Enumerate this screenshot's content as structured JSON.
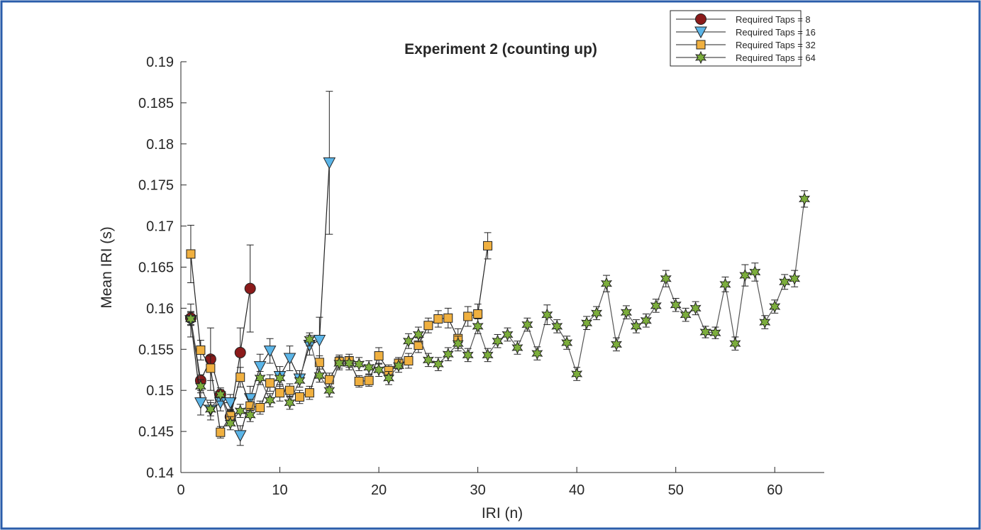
{
  "chart_data": {
    "type": "errorbar-line",
    "title": "Experiment 2 (counting up)",
    "x_label": "IRI (n)",
    "y_label": "Mean IRI (s)",
    "xlim": [
      0,
      65
    ],
    "xticks": [
      0,
      10,
      20,
      30,
      40,
      50,
      60
    ],
    "ylim": [
      0.14,
      0.19
    ],
    "yticks": [
      0.14,
      0.145,
      0.15,
      0.155,
      0.16,
      0.165,
      0.17,
      0.175,
      0.18,
      0.185,
      0.19
    ],
    "legend_position": "upper right",
    "series": [
      {
        "name": "Required Taps = 8",
        "color": "#8b1a1a",
        "marker": "circle",
        "x": [
          1,
          2,
          3,
          4,
          5,
          6,
          7
        ],
        "values": [
          0.1588,
          0.1512,
          0.1538,
          0.1495,
          0.1468,
          0.1546,
          0.1624
        ],
        "errors": [
          0.0008,
          0.0007,
          0.0038,
          0.0006,
          0.0008,
          0.003,
          0.0053
        ]
      },
      {
        "name": "Required Taps = 16",
        "color": "#5bb5e8",
        "marker": "triangle-down",
        "x": [
          1,
          2,
          3,
          4,
          5,
          6,
          7,
          8,
          9,
          10,
          11,
          12,
          13,
          14,
          15
        ],
        "values": [
          0.1585,
          0.1485,
          0.1476,
          0.1485,
          0.1485,
          0.1445,
          0.149,
          0.1529,
          0.1548,
          0.1517,
          0.1539,
          0.1514,
          0.1555,
          0.1561,
          0.1777
        ],
        "errors": [
          0.002,
          0.0015,
          0.0012,
          0.001,
          0.001,
          0.0012,
          0.0015,
          0.0015,
          0.0015,
          0.0012,
          0.0015,
          0.001,
          0.0012,
          0.0028,
          0.0087
        ]
      },
      {
        "name": "Required Taps = 32",
        "color": "#f0b040",
        "marker": "square",
        "x": [
          1,
          2,
          3,
          4,
          5,
          6,
          7,
          8,
          9,
          10,
          11,
          12,
          13,
          14,
          15,
          16,
          17,
          18,
          19,
          20,
          21,
          22,
          23,
          24,
          25,
          26,
          27,
          28,
          29,
          30,
          31
        ],
        "values": [
          0.1666,
          0.1549,
          0.1527,
          0.1449,
          0.1469,
          0.1516,
          0.1481,
          0.1479,
          0.1509,
          0.1497,
          0.15,
          0.1492,
          0.1497,
          0.1534,
          0.1513,
          0.1535,
          0.1536,
          0.1511,
          0.1512,
          0.1542,
          0.1524,
          0.1533,
          0.1536,
          0.1555,
          0.1579,
          0.1587,
          0.1588,
          0.1563,
          0.159,
          0.1593,
          0.1676
        ],
        "errors": [
          0.0035,
          0.0012,
          0.0015,
          0.0007,
          0.0008,
          0.0012,
          0.0008,
          0.0008,
          0.001,
          0.001,
          0.0008,
          0.0008,
          0.0008,
          0.0008,
          0.0008,
          0.0008,
          0.0008,
          0.0007,
          0.0007,
          0.001,
          0.0007,
          0.0007,
          0.0009,
          0.0009,
          0.0009,
          0.001,
          0.0012,
          0.0012,
          0.0012,
          0.0012,
          0.0016
        ]
      },
      {
        "name": "Required Taps = 64",
        "color": "#7cae3c",
        "marker": "hexagram",
        "x": [
          1,
          2,
          3,
          4,
          5,
          6,
          7,
          8,
          9,
          10,
          11,
          12,
          13,
          14,
          15,
          16,
          17,
          18,
          19,
          20,
          21,
          22,
          23,
          24,
          25,
          26,
          27,
          28,
          29,
          30,
          31,
          32,
          33,
          34,
          35,
          36,
          37,
          38,
          39,
          40,
          41,
          42,
          43,
          44,
          45,
          46,
          47,
          48,
          49,
          50,
          51,
          52,
          53,
          54,
          55,
          56,
          57,
          58,
          59,
          60,
          61,
          62,
          63
        ],
        "values": [
          0.1587,
          0.1505,
          0.1477,
          0.1495,
          0.146,
          0.1475,
          0.147,
          0.1515,
          0.1488,
          0.1515,
          0.1485,
          0.1512,
          0.1562,
          0.1518,
          0.15,
          0.1533,
          0.1533,
          0.1532,
          0.1528,
          0.1525,
          0.1515,
          0.153,
          0.156,
          0.1568,
          0.1537,
          0.1532,
          0.1544,
          0.1557,
          0.1543,
          0.1578,
          0.1543,
          0.156,
          0.1568,
          0.1552,
          0.158,
          0.1545,
          0.1592,
          0.1578,
          0.1558,
          0.152,
          0.1582,
          0.1594,
          0.163,
          0.1556,
          0.1595,
          0.1578,
          0.1585,
          0.1603,
          0.1636,
          0.1604,
          0.1592,
          0.16,
          0.1571,
          0.157,
          0.1629,
          0.1557,
          0.164,
          0.1644,
          0.1583,
          0.1602,
          0.1632,
          0.1636,
          0.1733
        ],
        "errors": [
          0.0008,
          0.0008,
          0.0008,
          0.0008,
          0.0008,
          0.0008,
          0.0008,
          0.0008,
          0.0008,
          0.0008,
          0.0008,
          0.0008,
          0.0008,
          0.0008,
          0.0008,
          0.0008,
          0.0008,
          0.0008,
          0.0008,
          0.0008,
          0.0008,
          0.0008,
          0.0009,
          0.0009,
          0.0008,
          0.0008,
          0.0008,
          0.0009,
          0.0008,
          0.0009,
          0.0008,
          0.0008,
          0.0008,
          0.0008,
          0.0008,
          0.0008,
          0.0012,
          0.0008,
          0.0008,
          0.0008,
          0.0008,
          0.0008,
          0.001,
          0.0008,
          0.0008,
          0.0008,
          0.0008,
          0.0008,
          0.001,
          0.0008,
          0.0008,
          0.0008,
          0.0007,
          0.0007,
          0.0009,
          0.0008,
          0.0013,
          0.0011,
          0.0008,
          0.0008,
          0.0009,
          0.001,
          0.001
        ]
      }
    ]
  }
}
